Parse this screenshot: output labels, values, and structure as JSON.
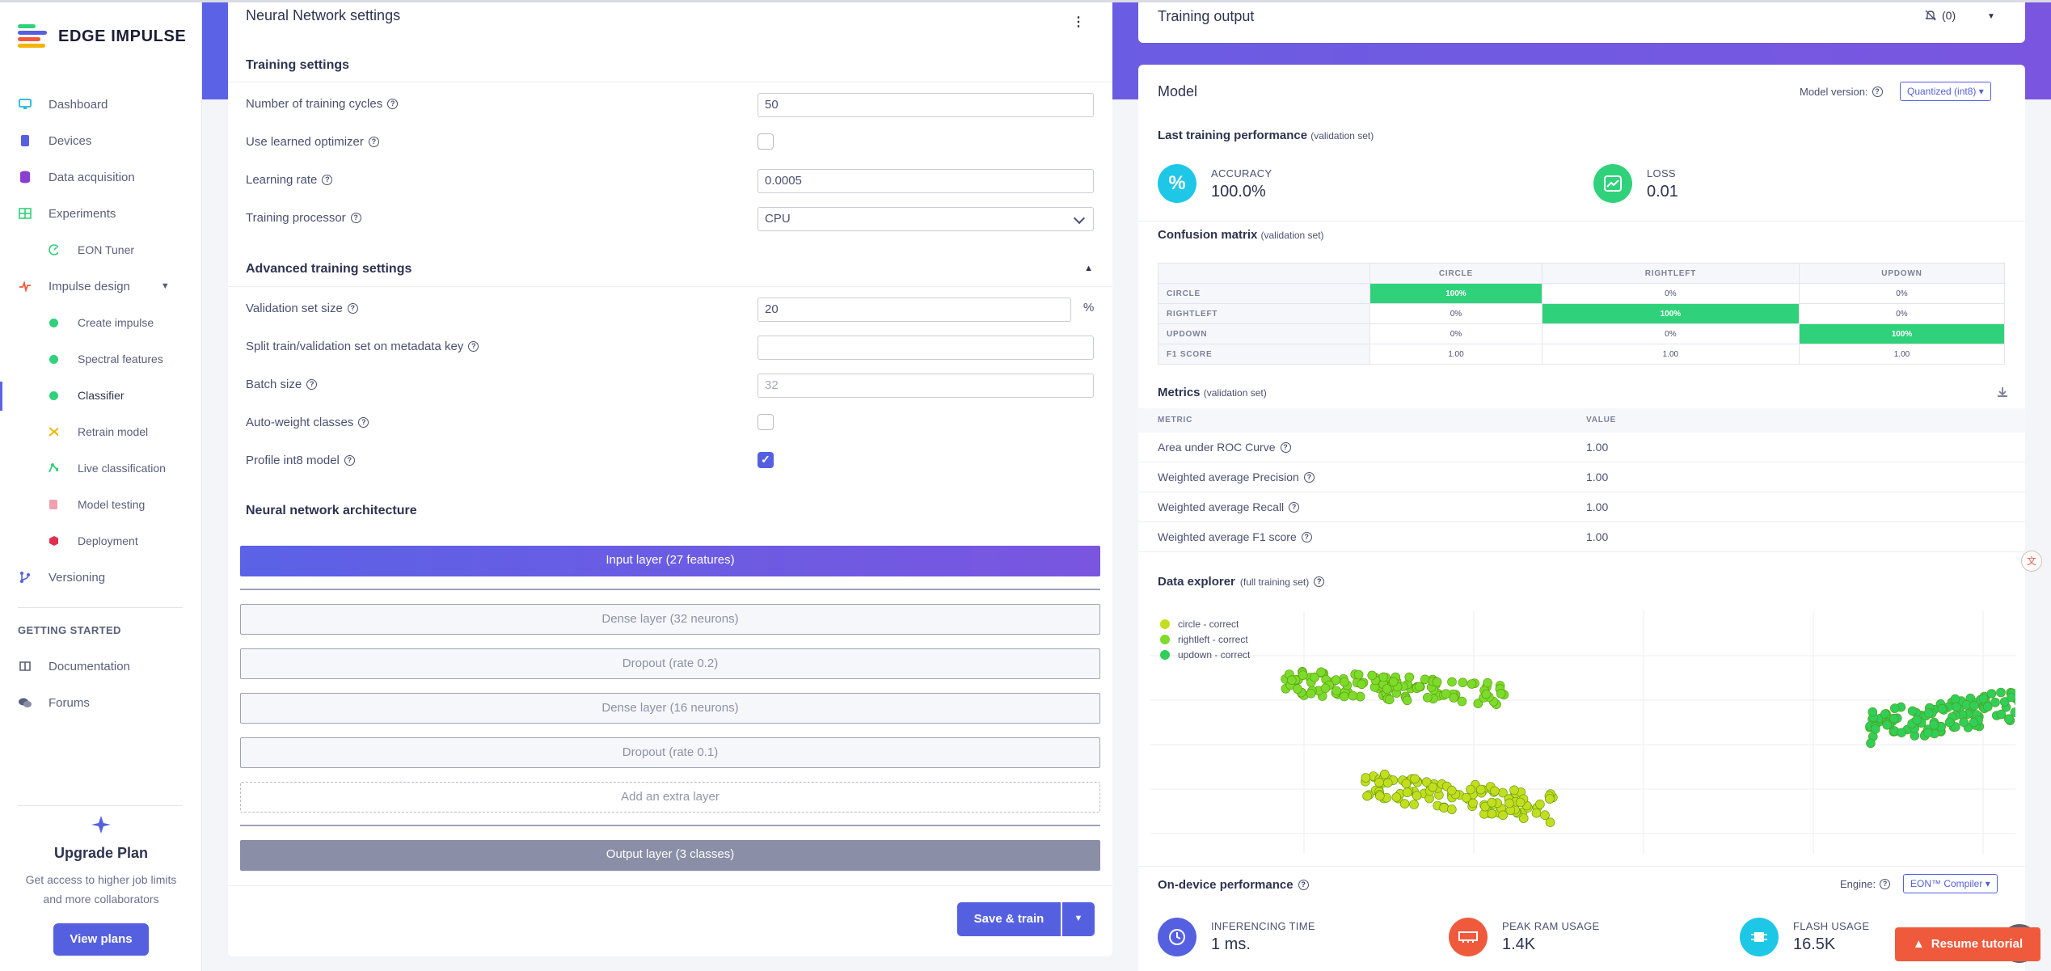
{
  "app": {
    "name": "EDGE IMPULSE"
  },
  "sidebar": {
    "items": [
      {
        "label": "Dashboard",
        "icon": "monitor-icon",
        "color": "#1fb6d8"
      },
      {
        "label": "Devices",
        "icon": "device-icon",
        "color": "#5560e0"
      },
      {
        "label": "Data acquisition",
        "icon": "database-icon",
        "color": "#8a3fd1"
      },
      {
        "label": "Experiments",
        "icon": "grid-icon",
        "color": "#2fd27a"
      },
      {
        "label": "EON Tuner",
        "icon": "tuner-icon",
        "color": "#2fd27a"
      },
      {
        "label": "Impulse design",
        "icon": "pulse-icon",
        "color": "#f05a3c"
      },
      {
        "label": "Create impulse",
        "icon": "dot-icon"
      },
      {
        "label": "Spectral features",
        "icon": "dot-icon"
      },
      {
        "label": "Classifier",
        "icon": "dot-icon"
      },
      {
        "label": "Retrain model",
        "icon": "shuffle-icon",
        "color": "#f4b400"
      },
      {
        "label": "Live classification",
        "icon": "live-icon",
        "color": "#2fd27a"
      },
      {
        "label": "Model testing",
        "icon": "flask-icon",
        "color": "#f0a0b0"
      },
      {
        "label": "Deployment",
        "icon": "cube-icon",
        "color": "#e03050"
      },
      {
        "label": "Versioning",
        "icon": "branch-icon",
        "color": "#5560e0"
      }
    ],
    "getting_started_label": "GETTING STARTED",
    "getting_started": [
      {
        "label": "Documentation",
        "icon": "book-icon"
      },
      {
        "label": "Forums",
        "icon": "chat-icon"
      }
    ],
    "upgrade": {
      "title": "Upgrade Plan",
      "desc_line1": "Get access to higher job limits",
      "desc_line2": "and more collaborators",
      "button": "View plans"
    }
  },
  "nn": {
    "title": "Neural Network settings",
    "training_settings": "Training settings",
    "cycles_label": "Number of training cycles",
    "cycles_value": "50",
    "optimizer_label": "Use learned optimizer",
    "lr_label": "Learning rate",
    "lr_value": "0.0005",
    "processor_label": "Training processor",
    "processor_value": "CPU",
    "advanced": "Advanced training settings",
    "val_label": "Validation set size",
    "val_value": "20",
    "val_unit": "%",
    "split_label": "Split train/validation set on metadata key",
    "split_value": "",
    "batch_label": "Batch size",
    "batch_placeholder": "32",
    "autoweight_label": "Auto-weight classes",
    "profile_label": "Profile int8 model",
    "arch": "Neural network architecture",
    "layers": {
      "input": "Input layer (27 features)",
      "dense1": "Dense layer (32 neurons)",
      "drop1": "Dropout (rate 0.2)",
      "dense2": "Dense layer (16 neurons)",
      "drop2": "Dropout (rate 0.1)",
      "add": "Add an extra layer",
      "output": "Output layer (3 classes)"
    },
    "save_button": "Save & train"
  },
  "output": {
    "title": "Training output",
    "bell_count": "(0)"
  },
  "model": {
    "title": "Model",
    "version_label": "Model version:",
    "version_value": "Quantized (int8)",
    "last_perf": "Last training performance",
    "validation_note": "(validation set)",
    "accuracy_label": "ACCURACY",
    "accuracy_value": "100.0%",
    "loss_label": "LOSS",
    "loss_value": "0.01",
    "confusion_title": "Confusion matrix",
    "cm": {
      "columns": [
        "CIRCLE",
        "RIGHTLEFT",
        "UPDOWN"
      ],
      "rows": [
        {
          "label": "CIRCLE",
          "cells": [
            "100%",
            "0%",
            "0%"
          ]
        },
        {
          "label": "RIGHTLEFT",
          "cells": [
            "0%",
            "100%",
            "0%"
          ]
        },
        {
          "label": "UPDOWN",
          "cells": [
            "0%",
            "0%",
            "100%"
          ]
        },
        {
          "label": "F1 SCORE",
          "cells": [
            "1.00",
            "1.00",
            "1.00"
          ]
        }
      ]
    },
    "metrics_title": "Metrics",
    "metrics_head": [
      "METRIC",
      "VALUE"
    ],
    "metrics": [
      {
        "name": "Area under ROC Curve",
        "value": "1.00"
      },
      {
        "name": "Weighted average Precision",
        "value": "1.00"
      },
      {
        "name": "Weighted average Recall",
        "value": "1.00"
      },
      {
        "name": "Weighted average F1 score",
        "value": "1.00"
      }
    ],
    "explorer_title": "Data explorer",
    "explorer_note": "(full training set)",
    "legend": [
      {
        "label": "circle - correct",
        "color": "#c4dd1e"
      },
      {
        "label": "rightleft - correct",
        "color": "#7ddb2a"
      },
      {
        "label": "updown - correct",
        "color": "#2fcf5a"
      }
    ],
    "ondevice_title": "On-device performance",
    "engine_label": "Engine:",
    "engine_value": "EON™ Compiler",
    "inferencing_label": "INFERENCING TIME",
    "inferencing_value": "1 ms.",
    "ram_label": "PEAK RAM USAGE",
    "ram_value": "1.4K",
    "flash_label": "FLASH USAGE",
    "flash_value": "16.5K"
  },
  "tutorial_button": "Resume tutorial"
}
